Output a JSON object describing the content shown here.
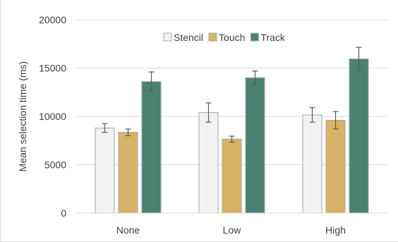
{
  "chart_data": {
    "type": "bar",
    "title": "",
    "xlabel": "",
    "ylabel": "Mean selection time (ms)",
    "ylim": [
      0,
      20000
    ],
    "yticks": [
      "0",
      "5000",
      "10000",
      "15000",
      "20000"
    ],
    "categories": [
      "None",
      "Low",
      "High"
    ],
    "grid": true,
    "legend_position": "top-center",
    "series": [
      {
        "name": "Stencil",
        "color": "#f2f2f2",
        "values": [
          8800,
          10400,
          10150
        ],
        "errors": [
          450,
          1000,
          750
        ]
      },
      {
        "name": "Touch",
        "color": "#d9b365",
        "values": [
          8350,
          7650,
          9600
        ],
        "errors": [
          350,
          300,
          900
        ]
      },
      {
        "name": "Track",
        "color": "#4a8272",
        "values": [
          13600,
          14000,
          15950
        ],
        "errors": [
          1000,
          700,
          1200
        ]
      }
    ]
  }
}
